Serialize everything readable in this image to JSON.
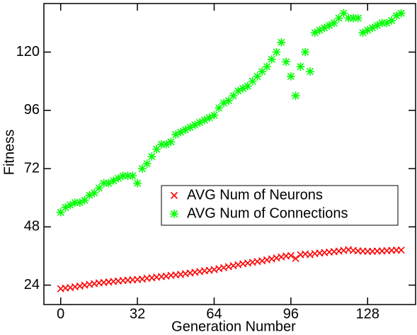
{
  "chart_data": {
    "type": "scatter",
    "x_label": "Generation Number",
    "y_label": "Fitness",
    "xlim": [
      -7,
      148
    ],
    "ylim": [
      16,
      140
    ],
    "xticks": [
      0,
      32,
      64,
      96,
      128
    ],
    "yticks": [
      24,
      48,
      72,
      96,
      120
    ],
    "legend_position": "right",
    "x": [
      0,
      2,
      4,
      6,
      8,
      10,
      12,
      14,
      16,
      18,
      20,
      22,
      24,
      26,
      28,
      30,
      32,
      34,
      36,
      38,
      40,
      42,
      44,
      46,
      48,
      50,
      52,
      54,
      56,
      58,
      60,
      62,
      64,
      66,
      68,
      70,
      72,
      74,
      76,
      78,
      80,
      82,
      84,
      86,
      88,
      90,
      92,
      94,
      96,
      98,
      100,
      102,
      104,
      106,
      108,
      110,
      112,
      114,
      116,
      118,
      120,
      122,
      124,
      126,
      128,
      130,
      132,
      134,
      136,
      138,
      140,
      142
    ],
    "series": [
      {
        "name": "AVG Num of Neurons",
        "color": "#ff0000",
        "marker": "x",
        "values": [
          22.5,
          22.8,
          23,
          23.3,
          23.6,
          24,
          24.3,
          24.6,
          24.9,
          25.1,
          25.3,
          25.5,
          25.7,
          25.9,
          26,
          26.2,
          26.3,
          26.5,
          26.8,
          27,
          27.3,
          27.5,
          27.7,
          28,
          28.2,
          28.4,
          28.7,
          29,
          29.3,
          29.6,
          29.9,
          30.1,
          30.4,
          30.8,
          31.2,
          31.6,
          32,
          32.4,
          32.8,
          33.1,
          33.4,
          33.7,
          34,
          34.4,
          34.8,
          35.2,
          35.6,
          36,
          36.2,
          35,
          36.5,
          36.8,
          36.5,
          37,
          37.2,
          37.4,
          37.6,
          37.8,
          38,
          38.3,
          38.6,
          38.3,
          38.1,
          38,
          37.9,
          37.9,
          38,
          38.1,
          38.2,
          38.3,
          38.4,
          38.4
        ]
      },
      {
        "name": "AVG Num of Connections",
        "color": "#00ff00",
        "marker": "star",
        "values": [
          54,
          56,
          57,
          58,
          58,
          59,
          61,
          62,
          64,
          66,
          66,
          67,
          68,
          69,
          69,
          69,
          66,
          72,
          74,
          77,
          80,
          82,
          82,
          83,
          86,
          87,
          88,
          89,
          90,
          91,
          92,
          93,
          94,
          97,
          99,
          100,
          102,
          104,
          105,
          106,
          108,
          110,
          112,
          114,
          117,
          120,
          124,
          116,
          110,
          102,
          114,
          120,
          112,
          128,
          129,
          130,
          131,
          132,
          134,
          136,
          134,
          134,
          134,
          128,
          129,
          130,
          131,
          132,
          132,
          133,
          135,
          136
        ]
      }
    ]
  }
}
